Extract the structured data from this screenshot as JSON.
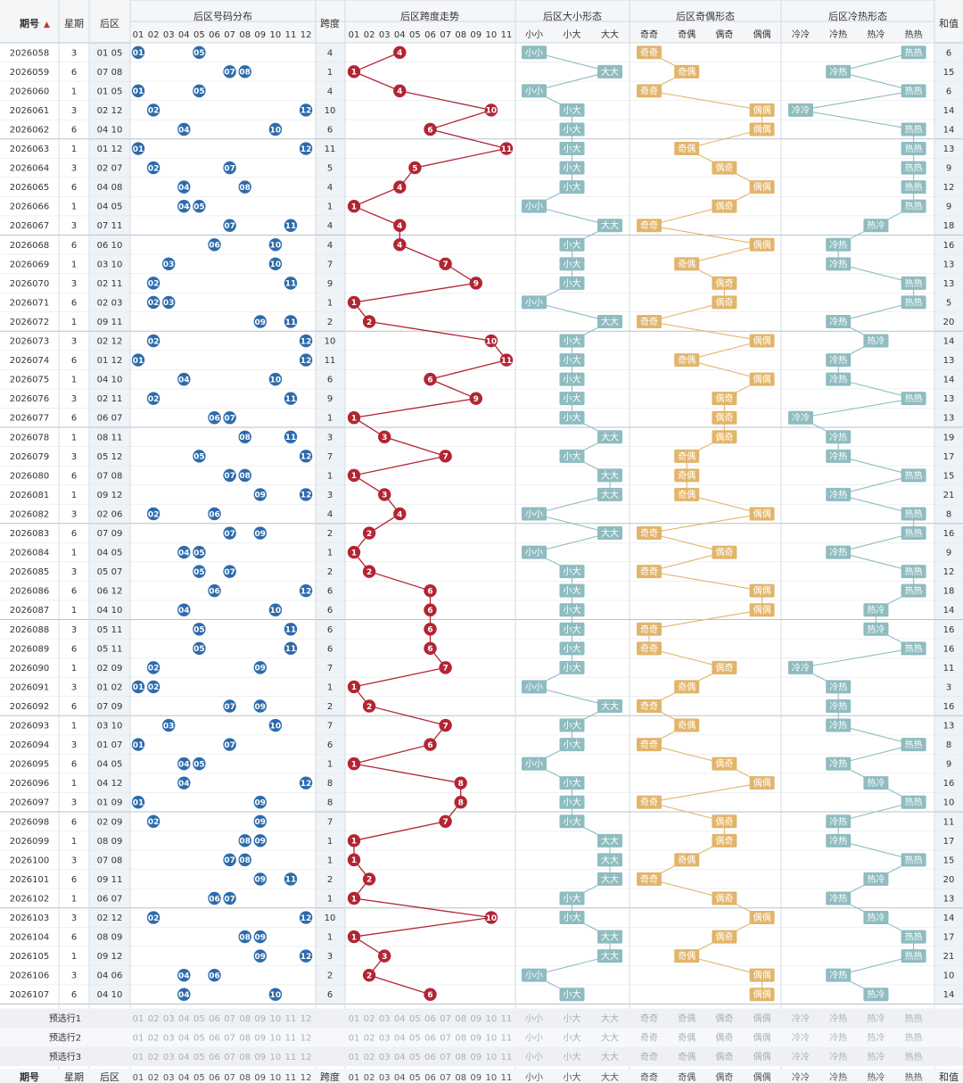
{
  "header": {
    "col_period": "期号",
    "col_week": "星期",
    "col_back": "后区",
    "grp_distribution": "后区号码分布",
    "col_span": "跨度",
    "grp_span_trend": "后区跨度走势",
    "grp_size": "后区大小形态",
    "grp_parity": "后区奇偶形态",
    "grp_temp": "后区冷热形态",
    "col_sum": "和值",
    "numbers": [
      "01",
      "02",
      "03",
      "04",
      "05",
      "06",
      "07",
      "08",
      "09",
      "10",
      "11",
      "12"
    ],
    "span_numbers": [
      "01",
      "02",
      "03",
      "04",
      "05",
      "06",
      "07",
      "08",
      "09",
      "10",
      "11"
    ],
    "size_labels": [
      "小小",
      "小大",
      "大大"
    ],
    "parity_labels": [
      "奇奇",
      "奇偶",
      "偶奇",
      "偶偶"
    ],
    "temp_labels": [
      "冷冷",
      "冷热",
      "热冷",
      "热热"
    ]
  },
  "presets": [
    "预选行1",
    "预选行2",
    "预选行3"
  ],
  "colors": {
    "ball_blue": "#2d6bab",
    "span_red": "#b22534",
    "size_teal": "#8fbcc0",
    "parity_gold": "#e2b56b",
    "temp_teal": "#8fbcc0"
  },
  "chart_data": {
    "type": "table",
    "columns": [
      "期号",
      "星期",
      "后区",
      "跨度",
      "后区大小形态",
      "后区奇偶形态",
      "后区冷热形态",
      "和值"
    ],
    "rows": [
      {
        "period": "2026058",
        "week": "3",
        "back": "01 05",
        "span": 4,
        "size": "小小",
        "parity": "奇奇",
        "temp": "热热",
        "sum": 6
      },
      {
        "period": "2026059",
        "week": "6",
        "back": "07 08",
        "span": 1,
        "size": "大大",
        "parity": "奇偶",
        "temp": "冷热",
        "sum": 15
      },
      {
        "period": "2026060",
        "week": "1",
        "back": "01 05",
        "span": 4,
        "size": "小小",
        "parity": "奇奇",
        "temp": "热热",
        "sum": 6
      },
      {
        "period": "2026061",
        "week": "3",
        "back": "02 12",
        "span": 10,
        "size": "小大",
        "parity": "偶偶",
        "temp": "冷冷",
        "sum": 14
      },
      {
        "period": "2026062",
        "week": "6",
        "back": "04 10",
        "span": 6,
        "size": "小大",
        "parity": "偶偶",
        "temp": "热热",
        "sum": 14
      },
      {
        "period": "2026063",
        "week": "1",
        "back": "01 12",
        "span": 11,
        "size": "小大",
        "parity": "奇偶",
        "temp": "热热",
        "sum": 13
      },
      {
        "period": "2026064",
        "week": "3",
        "back": "02 07",
        "span": 5,
        "size": "小大",
        "parity": "偶奇",
        "temp": "热热",
        "sum": 9
      },
      {
        "period": "2026065",
        "week": "6",
        "back": "04 08",
        "span": 4,
        "size": "小大",
        "parity": "偶偶",
        "temp": "热热",
        "sum": 12
      },
      {
        "period": "2026066",
        "week": "1",
        "back": "04 05",
        "span": 1,
        "size": "小小",
        "parity": "偶奇",
        "temp": "热热",
        "sum": 9
      },
      {
        "period": "2026067",
        "week": "3",
        "back": "07 11",
        "span": 4,
        "size": "大大",
        "parity": "奇奇",
        "temp": "热冷",
        "sum": 18
      },
      {
        "period": "2026068",
        "week": "6",
        "back": "06 10",
        "span": 4,
        "size": "小大",
        "parity": "偶偶",
        "temp": "冷热",
        "sum": 16
      },
      {
        "period": "2026069",
        "week": "1",
        "back": "03 10",
        "span": 7,
        "size": "小大",
        "parity": "奇偶",
        "temp": "冷热",
        "sum": 13
      },
      {
        "period": "2026070",
        "week": "3",
        "back": "02 11",
        "span": 9,
        "size": "小大",
        "parity": "偶奇",
        "temp": "热热",
        "sum": 13
      },
      {
        "period": "2026071",
        "week": "6",
        "back": "02 03",
        "span": 1,
        "size": "小小",
        "parity": "偶奇",
        "temp": "热热",
        "sum": 5
      },
      {
        "period": "2026072",
        "week": "1",
        "back": "09 11",
        "span": 2,
        "size": "大大",
        "parity": "奇奇",
        "temp": "冷热",
        "sum": 20
      },
      {
        "period": "2026073",
        "week": "3",
        "back": "02 12",
        "span": 10,
        "size": "小大",
        "parity": "偶偶",
        "temp": "热冷",
        "sum": 14
      },
      {
        "period": "2026074",
        "week": "6",
        "back": "01 12",
        "span": 11,
        "size": "小大",
        "parity": "奇偶",
        "temp": "冷热",
        "sum": 13
      },
      {
        "period": "2026075",
        "week": "1",
        "back": "04 10",
        "span": 6,
        "size": "小大",
        "parity": "偶偶",
        "temp": "冷热",
        "sum": 14
      },
      {
        "period": "2026076",
        "week": "3",
        "back": "02 11",
        "span": 9,
        "size": "小大",
        "parity": "偶奇",
        "temp": "热热",
        "sum": 13
      },
      {
        "period": "2026077",
        "week": "6",
        "back": "06 07",
        "span": 1,
        "size": "小大",
        "parity": "偶奇",
        "temp": "冷冷",
        "sum": 13
      },
      {
        "period": "2026078",
        "week": "1",
        "back": "08 11",
        "span": 3,
        "size": "大大",
        "parity": "偶奇",
        "temp": "冷热",
        "sum": 19
      },
      {
        "period": "2026079",
        "week": "3",
        "back": "05 12",
        "span": 7,
        "size": "小大",
        "parity": "奇偶",
        "temp": "冷热",
        "sum": 17
      },
      {
        "period": "2026080",
        "week": "6",
        "back": "07 08",
        "span": 1,
        "size": "大大",
        "parity": "奇偶",
        "temp": "热热",
        "sum": 15
      },
      {
        "period": "2026081",
        "week": "1",
        "back": "09 12",
        "span": 3,
        "size": "大大",
        "parity": "奇偶",
        "temp": "冷热",
        "sum": 21
      },
      {
        "period": "2026082",
        "week": "3",
        "back": "02 06",
        "span": 4,
        "size": "小小",
        "parity": "偶偶",
        "temp": "热热",
        "sum": 8
      },
      {
        "period": "2026083",
        "week": "6",
        "back": "07 09",
        "span": 2,
        "size": "大大",
        "parity": "奇奇",
        "temp": "热热",
        "sum": 16
      },
      {
        "period": "2026084",
        "week": "1",
        "back": "04 05",
        "span": 1,
        "size": "小小",
        "parity": "偶奇",
        "temp": "冷热",
        "sum": 9
      },
      {
        "period": "2026085",
        "week": "3",
        "back": "05 07",
        "span": 2,
        "size": "小大",
        "parity": "奇奇",
        "temp": "热热",
        "sum": 12
      },
      {
        "period": "2026086",
        "week": "6",
        "back": "06 12",
        "span": 6,
        "size": "小大",
        "parity": "偶偶",
        "temp": "热热",
        "sum": 18
      },
      {
        "period": "2026087",
        "week": "1",
        "back": "04 10",
        "span": 6,
        "size": "小大",
        "parity": "偶偶",
        "temp": "热冷",
        "sum": 14
      },
      {
        "period": "2026088",
        "week": "3",
        "back": "05 11",
        "span": 6,
        "size": "小大",
        "parity": "奇奇",
        "temp": "热冷",
        "sum": 16
      },
      {
        "period": "2026089",
        "week": "6",
        "back": "05 11",
        "span": 6,
        "size": "小大",
        "parity": "奇奇",
        "temp": "热热",
        "sum": 16
      },
      {
        "period": "2026090",
        "week": "1",
        "back": "02 09",
        "span": 7,
        "size": "小大",
        "parity": "偶奇",
        "temp": "冷冷",
        "sum": 11
      },
      {
        "period": "2026091",
        "week": "3",
        "back": "01 02",
        "span": 1,
        "size": "小小",
        "parity": "奇偶",
        "temp": "冷热",
        "sum": 3
      },
      {
        "period": "2026092",
        "week": "6",
        "back": "07 09",
        "span": 2,
        "size": "大大",
        "parity": "奇奇",
        "temp": "冷热",
        "sum": 16
      },
      {
        "period": "2026093",
        "week": "1",
        "back": "03 10",
        "span": 7,
        "size": "小大",
        "parity": "奇偶",
        "temp": "冷热",
        "sum": 13
      },
      {
        "period": "2026094",
        "week": "3",
        "back": "01 07",
        "span": 6,
        "size": "小大",
        "parity": "奇奇",
        "temp": "热热",
        "sum": 8
      },
      {
        "period": "2026095",
        "week": "6",
        "back": "04 05",
        "span": 1,
        "size": "小小",
        "parity": "偶奇",
        "temp": "冷热",
        "sum": 9
      },
      {
        "period": "2026096",
        "week": "1",
        "back": "04 12",
        "span": 8,
        "size": "小大",
        "parity": "偶偶",
        "temp": "热冷",
        "sum": 16
      },
      {
        "period": "2026097",
        "week": "3",
        "back": "01 09",
        "span": 8,
        "size": "小大",
        "parity": "奇奇",
        "temp": "热热",
        "sum": 10
      },
      {
        "period": "2026098",
        "week": "6",
        "back": "02 09",
        "span": 7,
        "size": "小大",
        "parity": "偶奇",
        "temp": "冷热",
        "sum": 11
      },
      {
        "period": "2026099",
        "week": "1",
        "back": "08 09",
        "span": 1,
        "size": "大大",
        "parity": "偶奇",
        "temp": "冷热",
        "sum": 17
      },
      {
        "period": "2026100",
        "week": "3",
        "back": "07 08",
        "span": 1,
        "size": "大大",
        "parity": "奇偶",
        "temp": "热热",
        "sum": 15
      },
      {
        "period": "2026101",
        "week": "6",
        "back": "09 11",
        "span": 2,
        "size": "大大",
        "parity": "奇奇",
        "temp": "热冷",
        "sum": 20
      },
      {
        "period": "2026102",
        "week": "1",
        "back": "06 07",
        "span": 1,
        "size": "小大",
        "parity": "偶奇",
        "temp": "冷热",
        "sum": 13
      },
      {
        "period": "2026103",
        "week": "3",
        "back": "02 12",
        "span": 10,
        "size": "小大",
        "parity": "偶偶",
        "temp": "热冷",
        "sum": 14
      },
      {
        "period": "2026104",
        "week": "6",
        "back": "08 09",
        "span": 1,
        "size": "大大",
        "parity": "偶奇",
        "temp": "热热",
        "sum": 17
      },
      {
        "period": "2026105",
        "week": "1",
        "back": "09 12",
        "span": 3,
        "size": "大大",
        "parity": "奇偶",
        "temp": "热热",
        "sum": 21
      },
      {
        "period": "2026106",
        "week": "3",
        "back": "04 06",
        "span": 2,
        "size": "小小",
        "parity": "偶偶",
        "temp": "冷热",
        "sum": 10
      },
      {
        "period": "2026107",
        "week": "6",
        "back": "04 10",
        "span": 6,
        "size": "小大",
        "parity": "偶偶",
        "temp": "热冷",
        "sum": 14
      }
    ]
  }
}
